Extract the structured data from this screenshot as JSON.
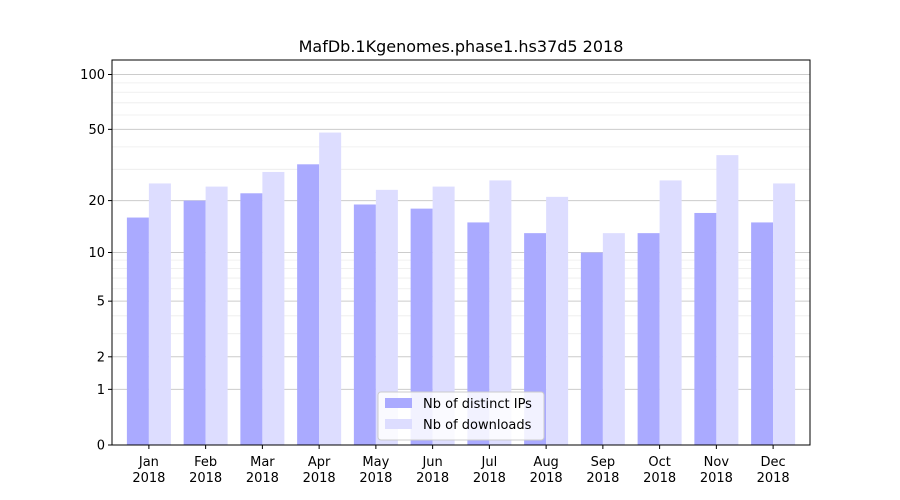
{
  "chart_data": {
    "type": "bar",
    "title": "MafDb.1Kgenomes.phase1.hs37d5 2018",
    "xlabel": "",
    "ylabel": "",
    "yscale": "log1p",
    "ylim": [
      0,
      120
    ],
    "yticks": [
      0,
      1,
      2,
      5,
      10,
      20,
      50,
      100
    ],
    "categories": [
      "Jan\n2018",
      "Feb\n2018",
      "Mar\n2018",
      "Apr\n2018",
      "May\n2018",
      "Jun\n2018",
      "Jul\n2018",
      "Aug\n2018",
      "Sep\n2018",
      "Oct\n2018",
      "Nov\n2018",
      "Dec\n2018"
    ],
    "series": [
      {
        "name": "Nb of distinct IPs",
        "color": "#aaaaff",
        "values": [
          16,
          20,
          22,
          32,
          19,
          18,
          15,
          13,
          10,
          13,
          17,
          15
        ]
      },
      {
        "name": "Nb of downloads",
        "color": "#ddddff",
        "values": [
          25,
          24,
          29,
          48,
          23,
          24,
          26,
          21,
          13,
          26,
          36,
          25
        ]
      }
    ],
    "grid": true,
    "legend_position": "bottom-center"
  }
}
